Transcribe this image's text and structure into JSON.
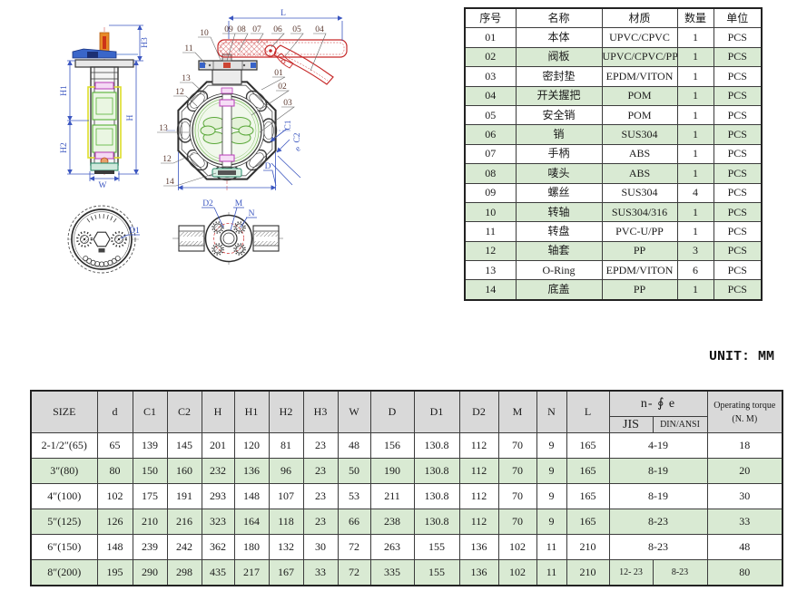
{
  "unit_label": "UNIT: MM",
  "parts_table": {
    "headers": [
      "序号",
      "名称",
      "材质",
      "数量",
      "单位"
    ],
    "rows": [
      [
        "01",
        "本体",
        "UPVC/CPVC",
        "1",
        "PCS"
      ],
      [
        "02",
        "阀板",
        "UPVC/CPVC/PP",
        "1",
        "PCS"
      ],
      [
        "03",
        "密封垫",
        "EPDM/VITON",
        "1",
        "PCS"
      ],
      [
        "04",
        "开关握把",
        "POM",
        "1",
        "PCS"
      ],
      [
        "05",
        "安全销",
        "POM",
        "1",
        "PCS"
      ],
      [
        "06",
        "销",
        "SUS304",
        "1",
        "PCS"
      ],
      [
        "07",
        "手柄",
        "ABS",
        "1",
        "PCS"
      ],
      [
        "08",
        "唛头",
        "ABS",
        "1",
        "PCS"
      ],
      [
        "09",
        "螺丝",
        "SUS304",
        "4",
        "PCS"
      ],
      [
        "10",
        "转轴",
        "SUS304/316",
        "1",
        "PCS"
      ],
      [
        "11",
        "转盘",
        "PVC-U/PP",
        "1",
        "PCS"
      ],
      [
        "12",
        "轴套",
        "PP",
        "3",
        "PCS"
      ],
      [
        "13",
        "O-Ring",
        "EPDM/VITON",
        "6",
        "PCS"
      ],
      [
        "14",
        "底盖",
        "PP",
        "1",
        "PCS"
      ]
    ]
  },
  "dim_table": {
    "headers": {
      "size": "SIZE",
      "cols": [
        "d",
        "C1",
        "C2",
        "H",
        "H1",
        "H2",
        "H3",
        "W",
        "D",
        "D1",
        "D2",
        "M",
        "N",
        "L"
      ],
      "n_phi_e": "n- ∮ e",
      "jis": "JIS",
      "din_ansi": "DIN/ANSI",
      "torque_line1": "Operating torque",
      "torque_line2": "(N. M)"
    },
    "rows": [
      {
        "size": "2-1/2″(65)",
        "vals": [
          "65",
          "139",
          "145",
          "201",
          "120",
          "81",
          "23",
          "48",
          "156",
          "130.8",
          "112",
          "70",
          "9",
          "165"
        ],
        "jis": "4-19",
        "din": null,
        "torque": "18"
      },
      {
        "size": "3″(80)",
        "vals": [
          "80",
          "150",
          "160",
          "232",
          "136",
          "96",
          "23",
          "50",
          "190",
          "130.8",
          "112",
          "70",
          "9",
          "165"
        ],
        "jis": "8-19",
        "din": null,
        "torque": "20"
      },
      {
        "size": "4″(100)",
        "vals": [
          "102",
          "175",
          "191",
          "293",
          "148",
          "107",
          "23",
          "53",
          "211",
          "130.8",
          "112",
          "70",
          "9",
          "165"
        ],
        "jis": "8-19",
        "din": null,
        "torque": "30"
      },
      {
        "size": "5″(125)",
        "vals": [
          "126",
          "210",
          "216",
          "323",
          "164",
          "118",
          "23",
          "66",
          "238",
          "130.8",
          "112",
          "70",
          "9",
          "165"
        ],
        "jis": "8-23",
        "din": null,
        "torque": "33"
      },
      {
        "size": "6″(150)",
        "vals": [
          "148",
          "239",
          "242",
          "362",
          "180",
          "132",
          "30",
          "72",
          "263",
          "155",
          "136",
          "102",
          "11",
          "210"
        ],
        "jis": "8-23",
        "din": null,
        "torque": "48"
      },
      {
        "size": "8″(200)",
        "vals": [
          "195",
          "290",
          "298",
          "435",
          "217",
          "167",
          "33",
          "72",
          "335",
          "155",
          "136",
          "102",
          "11",
          "210"
        ],
        "jis": "12- 23",
        "din": "8-23",
        "torque": "80"
      }
    ]
  },
  "drawing": {
    "side": {
      "h3": "H3",
      "h1": "H1",
      "h2": "H2",
      "h": "H",
      "w": "W"
    },
    "front": {
      "l": "L",
      "top": [
        "10",
        "09",
        "08",
        "07",
        "06",
        "05",
        "04"
      ],
      "c11": "11",
      "right": [
        "01",
        "02",
        "03"
      ],
      "left": [
        "13",
        "12",
        "13",
        "12",
        "14"
      ],
      "c1": "C1",
      "c2": "C2",
      "e": "e",
      "d": "D"
    },
    "disc": {
      "d1": "D1"
    },
    "flange": {
      "d2": "D2",
      "m": "M",
      "n": "N"
    }
  },
  "colors": {
    "row_green": "#d9ead3",
    "header_gray": "#d9d9d9",
    "dim_blue": "#3b56c0",
    "handle_red": "#c62828",
    "disc_green": "#5aa83a",
    "bushing_magenta": "#b83ab8",
    "stem_orange": "#e88a28",
    "yellow": "#dede2a"
  }
}
